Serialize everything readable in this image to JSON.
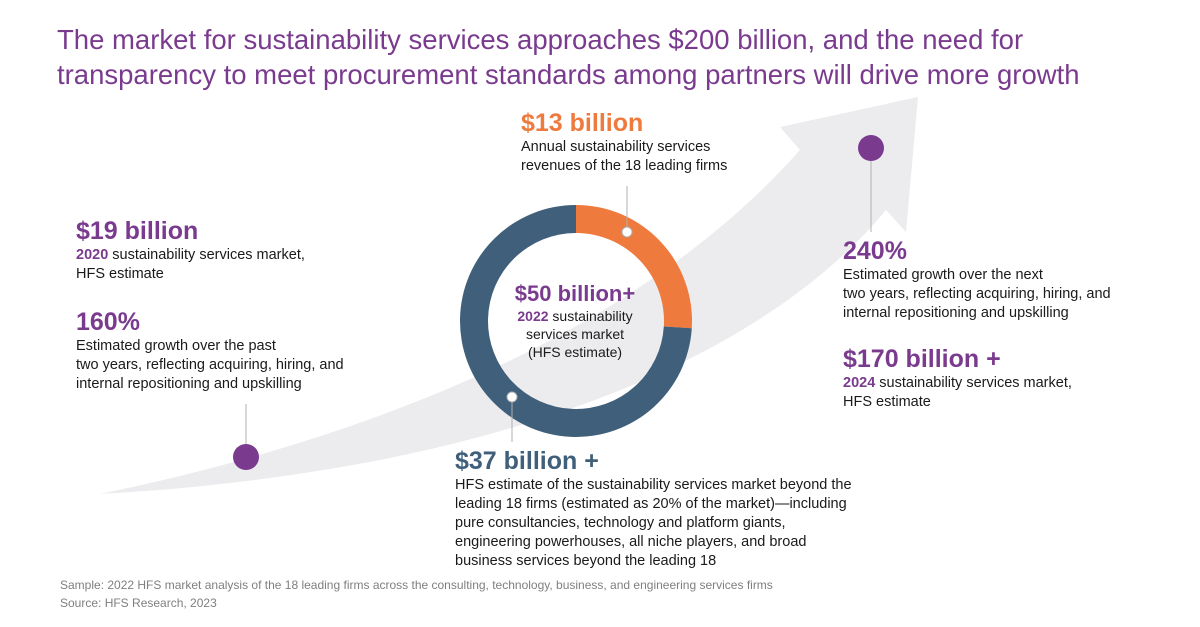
{
  "title": {
    "line1": "The market for sustainability services approaches $200 billion, and the need for",
    "line2": "transparency to meet procurement standards among partners will drive more growth"
  },
  "left": {
    "market_2020_value": "$19 billion",
    "market_2020_year": "2020",
    "market_2020_desc": " sustainability services market,",
    "market_2020_source": "HFS estimate",
    "growth_past_value": "160%",
    "growth_past_line1": "Estimated growth over the past",
    "growth_past_line2": "two years, reflecting acquiring, hiring, and",
    "growth_past_line3": "internal repositioning and upskilling"
  },
  "top": {
    "value": "$13 billion",
    "line1": "Annual sustainability services",
    "line2": "revenues of the 18 leading firms"
  },
  "center": {
    "value": "$50 billion+",
    "year": "2022",
    "line1": " sustainability",
    "line2": "services market",
    "line3": "(HFS estimate)"
  },
  "bottom": {
    "value": "$37 billion +",
    "line1": "HFS estimate of the sustainability services market beyond the",
    "line2": "leading 18 firms (estimated as 20% of the market)—including",
    "line3": "pure consultancies, technology and platform giants,",
    "line4": "engineering powerhouses, all niche players, and broad",
    "line5": "business services beyond the leading 18"
  },
  "right": {
    "growth_next_value": "240%",
    "growth_next_line1": "Estimated growth over the next",
    "growth_next_line2": "two years, reflecting acquiring, hiring, and",
    "growth_next_line3": "internal repositioning and upskilling",
    "market_2024_value": "$170 billion +",
    "market_2024_year": "2024",
    "market_2024_desc": " sustainability services market,",
    "market_2024_source": "HFS estimate"
  },
  "footer": {
    "sample": "Sample: 2022 HFS market analysis of the 18 leading firms across the consulting, technology, business, and engineering services firms",
    "source": "Source: HFS Research, 2023"
  },
  "colors": {
    "purple": "#7a3b8f",
    "orange": "#ef7a3d",
    "teal": "#3f5f7a",
    "arrow": "#ececef"
  },
  "chart_data": {
    "type": "pie",
    "categories": [
      "$13 billion",
      "$37 billion +"
    ],
    "values": [
      13,
      37
    ],
    "colors": [
      "#ef7a3d",
      "#3f5f7a"
    ],
    "donut": true
  }
}
